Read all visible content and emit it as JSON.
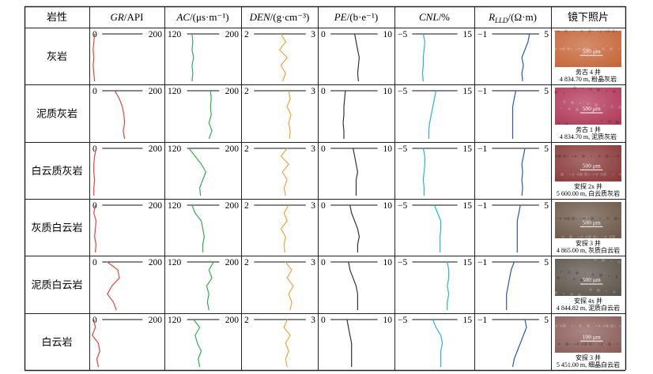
{
  "header": {
    "rock": "岩性",
    "gr_name": "GR",
    "gr_unit": "/API",
    "ac_name": "AC",
    "ac_unit": "/(μs·m⁻¹)",
    "den_name": "DEN",
    "den_unit": "/(g·cm⁻³)",
    "pe_name": "PE",
    "pe_unit": "/(b·e⁻¹)",
    "cnl_name": "CNL",
    "cnl_unit": "/%",
    "rlld_name": "R",
    "rlld_sub": "LLD",
    "rlld_unit": "/(Ω·m)",
    "photo": "镜下照片"
  },
  "tracks": [
    {
      "key": "gr",
      "min": "0",
      "max": "200",
      "color": "#e0453a"
    },
    {
      "key": "ac",
      "min": "120",
      "max": "200",
      "color": "#2fae4f"
    },
    {
      "key": "den",
      "min": "2",
      "max": "3",
      "color": "#f2a23a"
    },
    {
      "key": "pe",
      "min": "0",
      "max": "10",
      "color": "#333333"
    },
    {
      "key": "cnl",
      "min": "−5",
      "max": "15",
      "color": "#27b3d8"
    },
    {
      "key": "rlld",
      "min": "−1",
      "max": "5",
      "color": "#2b55b8"
    }
  ],
  "rows": [
    {
      "rock": "灰岩",
      "scale": "500 μm",
      "cap1": "务古 4 井",
      "cap2": "4 834.70 m, 粉晶灰岩",
      "photo_color": "#c7663a"
    },
    {
      "rock": "泥质灰岩",
      "scale": "500 μm",
      "cap1": "务古 1 井",
      "cap2": "4 834.70 m, 泥质灰岩",
      "photo_color": "#b23a5a"
    },
    {
      "rock": "白云质灰岩",
      "scale": "500 μm",
      "cap1": "安探 2x 井",
      "cap2": "5 600.00 m, 白云质灰岩",
      "photo_color": "#8a3a3a"
    },
    {
      "rock": "灰质白云岩",
      "scale": "500 μm",
      "cap1": "安探 3 井",
      "cap2": "4 865.00 m, 灰质白云岩",
      "photo_color": "#6e5a4c"
    },
    {
      "rock": "泥质白云岩",
      "scale": "500 μm",
      "cap1": "安探 4x 井",
      "cap2": "4 844.82 m, 泥质白云岩",
      "photo_color": "#5e564c"
    },
    {
      "rock": "白云岩",
      "scale": "100 μm",
      "cap1": "安探 3 井",
      "cap2": "5 451.00 m, 细晶白云岩",
      "photo_color": "#8c5e5a"
    }
  ]
}
